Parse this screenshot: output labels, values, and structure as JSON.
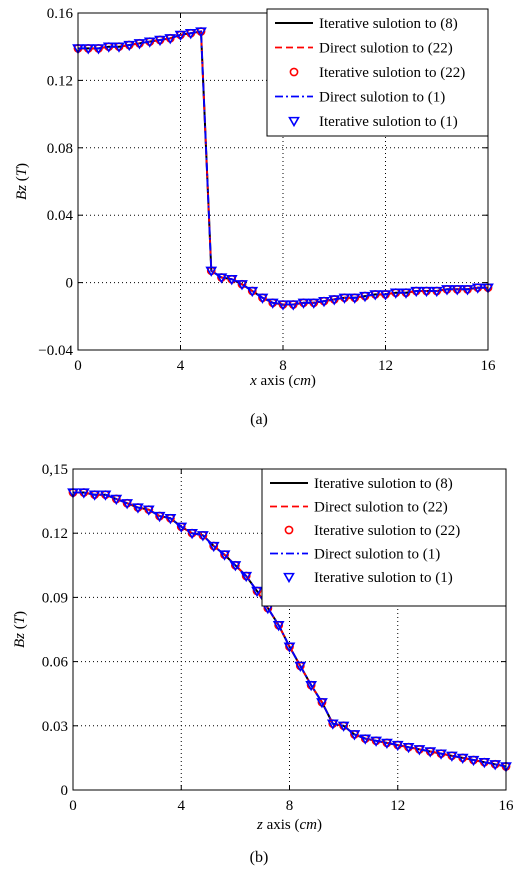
{
  "chart_data": [
    {
      "id": "a",
      "type": "line",
      "caption": "(a)",
      "xlabel_var": "x",
      "xlabel_mid": " axis (",
      "xlabel_unit": "cm",
      "xlabel_end": ")",
      "ylabel_var": "Bz",
      "ylabel_mid": " (",
      "ylabel_unit": "T",
      "ylabel_end": ")",
      "xlim": [
        0,
        16
      ],
      "ylim": [
        -0.04,
        0.16
      ],
      "xticks": [
        0,
        4,
        8,
        12,
        16
      ],
      "yticks": [
        -0.04,
        0,
        0.04,
        0.08,
        0.12,
        0.16
      ],
      "xtick_labels": [
        "0",
        "4",
        "8",
        "12",
        "16"
      ],
      "ytick_labels": [
        "−0.04",
        "0",
        "0.04",
        "0.08",
        "0.12",
        "0.16"
      ],
      "grid": true,
      "legend_position": "top-right",
      "x": [
        0,
        0.4,
        0.8,
        1.2,
        1.6,
        2.0,
        2.4,
        2.8,
        3.2,
        3.6,
        4.0,
        4.4,
        4.8,
        5.2,
        5.6,
        6.0,
        6.4,
        6.8,
        7.2,
        7.6,
        8.0,
        8.4,
        8.8,
        9.2,
        9.6,
        10.0,
        10.4,
        10.8,
        11.2,
        11.6,
        12.0,
        12.4,
        12.8,
        13.2,
        13.6,
        14.0,
        14.4,
        14.8,
        15.2,
        15.6,
        16.0
      ],
      "series": [
        {
          "name": "Iterative sulotion to (8)",
          "style": "solid",
          "color": "#000000",
          "values": [
            0.139,
            0.139,
            0.139,
            0.14,
            0.14,
            0.141,
            0.142,
            0.143,
            0.144,
            0.145,
            0.147,
            0.148,
            0.149,
            0.007,
            0.003,
            0.002,
            -0.001,
            -0.005,
            -0.009,
            -0.012,
            -0.013,
            -0.013,
            -0.012,
            -0.012,
            -0.011,
            -0.01,
            -0.009,
            -0.009,
            -0.008,
            -0.007,
            -0.007,
            -0.006,
            -0.006,
            -0.005,
            -0.005,
            -0.005,
            -0.004,
            -0.004,
            -0.004,
            -0.003,
            -0.003
          ]
        },
        {
          "name": "Direct sulotion to (22)",
          "style": "dashed",
          "color": "#ff0000",
          "values": [
            0.139,
            0.139,
            0.139,
            0.14,
            0.14,
            0.141,
            0.142,
            0.143,
            0.144,
            0.145,
            0.147,
            0.148,
            0.149,
            0.007,
            0.003,
            0.002,
            -0.001,
            -0.005,
            -0.009,
            -0.012,
            -0.013,
            -0.013,
            -0.012,
            -0.012,
            -0.011,
            -0.01,
            -0.009,
            -0.009,
            -0.008,
            -0.007,
            -0.007,
            -0.006,
            -0.006,
            -0.005,
            -0.005,
            -0.005,
            -0.004,
            -0.004,
            -0.004,
            -0.003,
            -0.003
          ]
        },
        {
          "name": "Iterative sulotion to (22)",
          "style": "circle",
          "color": "#ff0000",
          "values": [
            0.139,
            0.139,
            0.139,
            0.14,
            0.14,
            0.141,
            0.142,
            0.143,
            0.144,
            0.145,
            0.147,
            0.148,
            0.149,
            0.007,
            0.003,
            0.002,
            -0.001,
            -0.005,
            -0.009,
            -0.012,
            -0.013,
            -0.013,
            -0.012,
            -0.012,
            -0.011,
            -0.01,
            -0.009,
            -0.009,
            -0.008,
            -0.007,
            -0.007,
            -0.006,
            -0.006,
            -0.005,
            -0.005,
            -0.005,
            -0.004,
            -0.004,
            -0.004,
            -0.003,
            -0.003
          ]
        },
        {
          "name": "Direct sulotion to (1)",
          "style": "dashdot",
          "color": "#0000ff",
          "values": [
            0.139,
            0.139,
            0.139,
            0.14,
            0.14,
            0.141,
            0.142,
            0.143,
            0.144,
            0.145,
            0.147,
            0.148,
            0.149,
            0.007,
            0.003,
            0.002,
            -0.001,
            -0.005,
            -0.009,
            -0.012,
            -0.013,
            -0.013,
            -0.012,
            -0.012,
            -0.011,
            -0.01,
            -0.009,
            -0.009,
            -0.008,
            -0.007,
            -0.007,
            -0.006,
            -0.006,
            -0.005,
            -0.005,
            -0.005,
            -0.004,
            -0.004,
            -0.004,
            -0.003,
            -0.003
          ]
        },
        {
          "name": "Iterative sulotion to (1)",
          "style": "triangle",
          "color": "#0000ff",
          "values": [
            0.139,
            0.139,
            0.139,
            0.14,
            0.14,
            0.141,
            0.142,
            0.143,
            0.144,
            0.145,
            0.147,
            0.148,
            0.149,
            0.007,
            0.003,
            0.002,
            -0.001,
            -0.005,
            -0.009,
            -0.012,
            -0.013,
            -0.013,
            -0.012,
            -0.012,
            -0.011,
            -0.01,
            -0.009,
            -0.009,
            -0.008,
            -0.007,
            -0.007,
            -0.006,
            -0.006,
            -0.005,
            -0.005,
            -0.005,
            -0.004,
            -0.004,
            -0.004,
            -0.003,
            -0.003
          ]
        }
      ]
    },
    {
      "id": "b",
      "type": "line",
      "caption": "(b)",
      "xlabel_var": "z",
      "xlabel_mid": " axis (",
      "xlabel_unit": "cm",
      "xlabel_end": ")",
      "ylabel_var": "Bz",
      "ylabel_mid": " (",
      "ylabel_unit": "T",
      "ylabel_end": ")",
      "xlim": [
        0,
        16
      ],
      "ylim": [
        0,
        0.15
      ],
      "xticks": [
        0,
        4,
        8,
        12,
        16
      ],
      "yticks": [
        0,
        0.03,
        0.06,
        0.09,
        0.12,
        0.15
      ],
      "xtick_labels": [
        "0",
        "4",
        "8",
        "12",
        "16"
      ],
      "ytick_labels": [
        "0",
        "0.03",
        "0.06",
        "0.09",
        "0.12",
        "0,15"
      ],
      "grid": true,
      "legend_position": "top-right",
      "x": [
        0,
        0.4,
        0.8,
        1.2,
        1.6,
        2.0,
        2.4,
        2.8,
        3.2,
        3.6,
        4.0,
        4.4,
        4.8,
        5.2,
        5.6,
        6.0,
        6.4,
        6.8,
        7.2,
        7.6,
        8.0,
        8.4,
        8.8,
        9.2,
        9.6,
        10.0,
        10.4,
        10.8,
        11.2,
        11.6,
        12.0,
        12.4,
        12.8,
        13.2,
        13.6,
        14.0,
        14.4,
        14.8,
        15.2,
        15.6,
        16.0
      ],
      "series": [
        {
          "name": "Iterative sulotion to (8)",
          "style": "solid",
          "color": "#000000",
          "values": [
            0.139,
            0.139,
            0.138,
            0.138,
            0.136,
            0.134,
            0.132,
            0.131,
            0.128,
            0.127,
            0.123,
            0.12,
            0.119,
            0.114,
            0.11,
            0.105,
            0.1,
            0.093,
            0.085,
            0.077,
            0.067,
            0.058,
            0.049,
            0.041,
            0.031,
            0.03,
            0.026,
            0.024,
            0.023,
            0.022,
            0.021,
            0.02,
            0.019,
            0.018,
            0.017,
            0.016,
            0.015,
            0.014,
            0.013,
            0.012,
            0.011
          ]
        },
        {
          "name": "Direct sulotion to (22)",
          "style": "dashed",
          "color": "#ff0000",
          "values": [
            0.139,
            0.139,
            0.138,
            0.138,
            0.136,
            0.134,
            0.132,
            0.131,
            0.128,
            0.127,
            0.123,
            0.12,
            0.119,
            0.114,
            0.11,
            0.105,
            0.1,
            0.093,
            0.085,
            0.077,
            0.067,
            0.058,
            0.049,
            0.041,
            0.031,
            0.03,
            0.026,
            0.024,
            0.023,
            0.022,
            0.021,
            0.02,
            0.019,
            0.018,
            0.017,
            0.016,
            0.015,
            0.014,
            0.013,
            0.012,
            0.011
          ]
        },
        {
          "name": "Iterative sulotion to (22)",
          "style": "circle",
          "color": "#ff0000",
          "values": [
            0.139,
            0.139,
            0.138,
            0.138,
            0.136,
            0.134,
            0.132,
            0.131,
            0.128,
            0.127,
            0.123,
            0.12,
            0.119,
            0.114,
            0.11,
            0.105,
            0.1,
            0.093,
            0.085,
            0.077,
            0.067,
            0.058,
            0.049,
            0.041,
            0.031,
            0.03,
            0.026,
            0.024,
            0.023,
            0.022,
            0.021,
            0.02,
            0.019,
            0.018,
            0.017,
            0.016,
            0.015,
            0.014,
            0.013,
            0.012,
            0.011
          ]
        },
        {
          "name": "Direct sulotion to (1)",
          "style": "dashdot",
          "color": "#0000ff",
          "values": [
            0.139,
            0.139,
            0.138,
            0.138,
            0.136,
            0.134,
            0.132,
            0.131,
            0.128,
            0.127,
            0.123,
            0.12,
            0.119,
            0.114,
            0.11,
            0.105,
            0.1,
            0.093,
            0.085,
            0.077,
            0.067,
            0.058,
            0.049,
            0.041,
            0.031,
            0.03,
            0.026,
            0.024,
            0.023,
            0.022,
            0.021,
            0.02,
            0.019,
            0.018,
            0.017,
            0.016,
            0.015,
            0.014,
            0.013,
            0.012,
            0.011
          ]
        },
        {
          "name": "Iterative sulotion to (1)",
          "style": "triangle",
          "color": "#0000ff",
          "values": [
            0.139,
            0.139,
            0.138,
            0.138,
            0.136,
            0.134,
            0.132,
            0.131,
            0.128,
            0.127,
            0.123,
            0.12,
            0.119,
            0.114,
            0.11,
            0.105,
            0.1,
            0.093,
            0.085,
            0.077,
            0.067,
            0.058,
            0.049,
            0.041,
            0.031,
            0.03,
            0.026,
            0.024,
            0.023,
            0.022,
            0.021,
            0.02,
            0.019,
            0.018,
            0.017,
            0.016,
            0.015,
            0.014,
            0.013,
            0.012,
            0.011
          ]
        }
      ]
    }
  ]
}
